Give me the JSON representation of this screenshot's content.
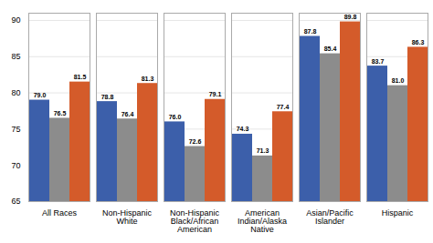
{
  "chart_data": {
    "type": "bar",
    "categories": [
      "All Races",
      "Non-Hispanic\nWhite",
      "Non-Hispanic\nBlack/African\nAmerican",
      "American\nIndian/Alaska\nNative",
      "Asian/Pacific\nIslander",
      "Hispanic"
    ],
    "series": [
      {
        "color": "#3c5faa",
        "values": [
          79.0,
          78.8,
          76.0,
          74.3,
          87.8,
          83.7
        ],
        "value_labels": [
          "79.0",
          "78.8",
          "76.0",
          "74.3",
          "87.8",
          "83.7"
        ]
      },
      {
        "color": "#8c8c8c",
        "values": [
          76.5,
          76.4,
          72.6,
          71.3,
          85.4,
          81.0
        ],
        "value_labels": [
          "76.5",
          "76.4",
          "72.6",
          "71.3",
          "85.4",
          "81.0"
        ]
      },
      {
        "color": "#d45b2a",
        "values": [
          81.5,
          81.3,
          79.1,
          77.4,
          89.8,
          86.3
        ],
        "value_labels": [
          "81.5",
          "81.3",
          "79.1",
          "77.4",
          "89.8",
          "86.3"
        ]
      }
    ],
    "ylim": [
      65,
      91
    ],
    "yticks": [
      65,
      70,
      75,
      80,
      85,
      90
    ],
    "grid": true,
    "data_labels": true
  }
}
